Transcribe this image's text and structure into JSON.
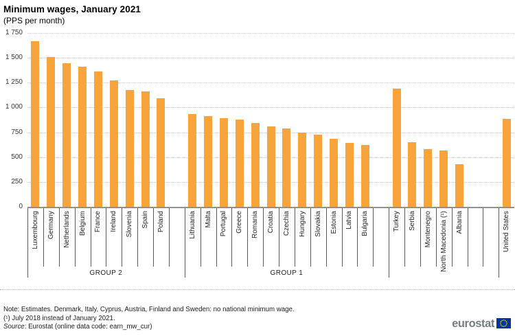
{
  "header": {
    "title": "Minimum wages, January 2021",
    "subtitle": "(PPS per month)"
  },
  "chart_data": {
    "type": "bar",
    "title": "Minimum wages, January 2021",
    "subtitle": "(PPS per month)",
    "unit": "PPS per month",
    "ylim": [
      0,
      1750
    ],
    "ytick_interval": 250,
    "ytick_labels": [
      "1 750",
      "1 500",
      "1 250",
      "1 000",
      "750",
      "500",
      "250",
      "0"
    ],
    "grid": "horizontal dotted lines, on",
    "legend": "none",
    "bar_color": "#F8A43C",
    "groups": [
      {
        "label": "GROUP 2",
        "trailing_empty_slots": 1,
        "items": [
          {
            "country": "Luxembourg",
            "value": 1668
          },
          {
            "country": "Germany",
            "value": 1505
          },
          {
            "country": "Netherlands",
            "value": 1443
          },
          {
            "country": "Belgium",
            "value": 1410
          },
          {
            "country": "France",
            "value": 1366
          },
          {
            "country": "Ireland",
            "value": 1276
          },
          {
            "country": "Slovenia",
            "value": 1178
          },
          {
            "country": "Spain",
            "value": 1159
          },
          {
            "country": "Poland",
            "value": 1090
          }
        ]
      },
      {
        "label": "GROUP 1",
        "trailing_empty_slots": 1,
        "items": [
          {
            "country": "Lithuania",
            "value": 935
          },
          {
            "country": "Malta",
            "value": 910
          },
          {
            "country": "Portugal",
            "value": 890
          },
          {
            "country": "Greece",
            "value": 880
          },
          {
            "country": "Romania",
            "value": 847
          },
          {
            "country": "Croatia",
            "value": 808
          },
          {
            "country": "Czechia",
            "value": 789
          },
          {
            "country": "Hungary",
            "value": 746
          },
          {
            "country": "Slovakia",
            "value": 723
          },
          {
            "country": "Estonia",
            "value": 684
          },
          {
            "country": "Latvia",
            "value": 645
          },
          {
            "country": "Bulgaria",
            "value": 623
          }
        ]
      },
      {
        "label": "",
        "trailing_empty_slots": 2,
        "items": [
          {
            "country": "Turkey",
            "value": 1191
          },
          {
            "country": "Serbia",
            "value": 650
          },
          {
            "country": "Montenegro",
            "value": 582
          },
          {
            "country": "North Macedonia (¹)",
            "value": 570
          },
          {
            "country": "Albania",
            "value": 429
          }
        ]
      },
      {
        "label": "",
        "trailing_empty_slots": 0,
        "items": [
          {
            "country": "United States",
            "value": 884
          }
        ]
      }
    ]
  },
  "notes": {
    "line1": "Note: Estimates. Denmark, Italy, Cyprus, Austria, Finland and Sweden: no national minimum wage.",
    "line2": "(¹) July 2018 instead of January 2021.",
    "source_label": "Source",
    "source_rest": ": Eurostat (online data code: earn_mw_cur)"
  },
  "logo": {
    "text": "eurostat"
  },
  "colors": {
    "bar": "#F8A43C",
    "axis_line": "#8F8F8F",
    "gridline": "#C9C9C9",
    "separator": "#595959",
    "logo_text": "#747C80",
    "flag_blue": "#003399",
    "star_yellow": "#FFCC00"
  }
}
